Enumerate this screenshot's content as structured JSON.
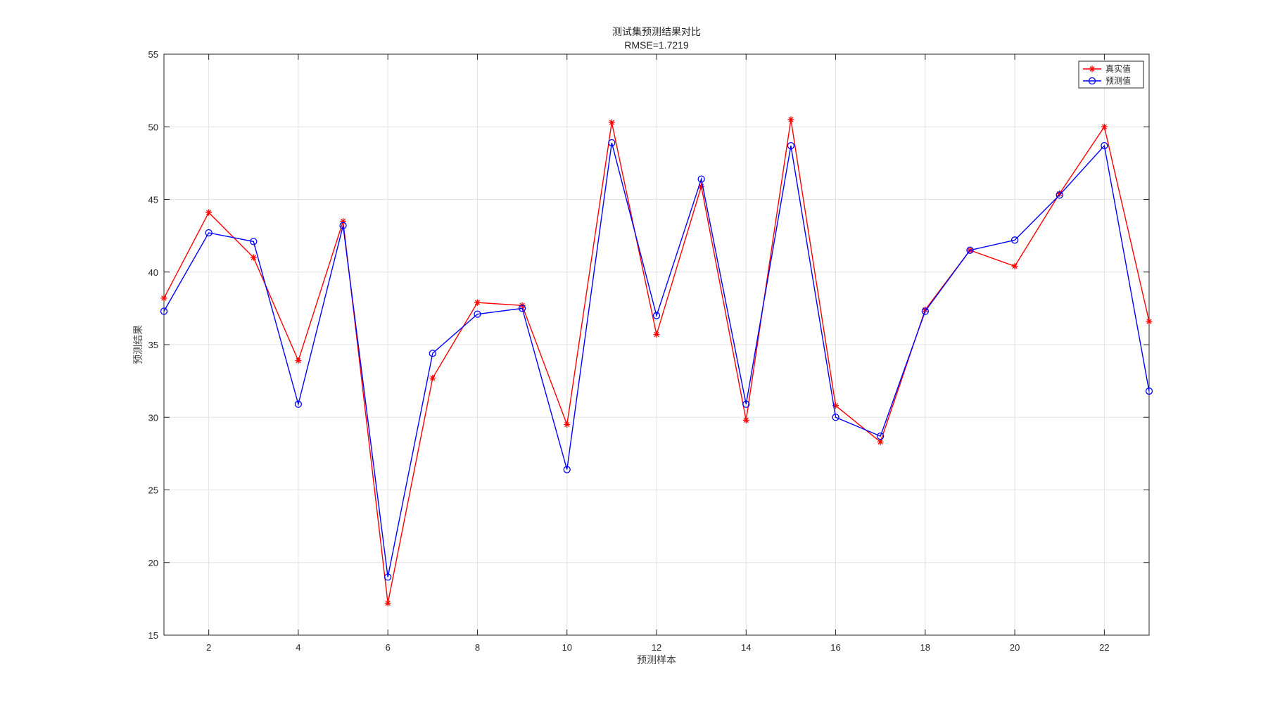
{
  "chart_data": {
    "type": "line",
    "title": "测试集预测结果对比",
    "subtitle": "RMSE=1.7219",
    "xlabel": "预测样本",
    "ylabel": "预测结果",
    "xlim": [
      1,
      23
    ],
    "ylim": [
      15,
      55
    ],
    "xticks": [
      2,
      4,
      6,
      8,
      10,
      12,
      14,
      16,
      18,
      20,
      22
    ],
    "yticks": [
      15,
      20,
      25,
      30,
      35,
      40,
      45,
      50,
      55
    ],
    "grid": true,
    "legend_position": "top-right",
    "x": [
      1,
      2,
      3,
      4,
      5,
      6,
      7,
      8,
      9,
      10,
      11,
      12,
      13,
      14,
      15,
      16,
      17,
      18,
      19,
      20,
      21,
      22,
      23
    ],
    "series": [
      {
        "name": "真实值",
        "color": "#ff0000",
        "marker": "asterisk",
        "values": [
          38.2,
          44.1,
          41.0,
          33.9,
          43.5,
          17.2,
          32.7,
          37.9,
          37.7,
          29.5,
          50.3,
          35.7,
          45.9,
          29.8,
          50.5,
          30.8,
          28.3,
          37.4,
          41.5,
          40.4,
          45.4,
          50.0,
          36.6
        ]
      },
      {
        "name": "预测值",
        "color": "#0000ff",
        "marker": "circle",
        "values": [
          37.3,
          42.7,
          42.1,
          30.9,
          43.2,
          19.0,
          34.4,
          37.1,
          37.5,
          26.4,
          48.9,
          37.0,
          46.4,
          30.9,
          48.7,
          30.0,
          28.7,
          37.3,
          41.5,
          42.2,
          45.3,
          48.7,
          31.8
        ]
      }
    ]
  }
}
